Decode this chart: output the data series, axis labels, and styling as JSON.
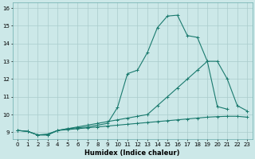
{
  "title": "",
  "xlabel": "Humidex (Indice chaleur)",
  "bg_color": "#cce8e8",
  "grid_color": "#aacccc",
  "line_color": "#1a7a6e",
  "xlim": [
    -0.5,
    23.5
  ],
  "ylim": [
    8.6,
    16.3
  ],
  "xticks": [
    0,
    1,
    2,
    3,
    4,
    5,
    6,
    7,
    8,
    9,
    10,
    11,
    12,
    13,
    14,
    15,
    16,
    17,
    18,
    19,
    20,
    21,
    22,
    23
  ],
  "yticks": [
    9,
    10,
    11,
    12,
    13,
    14,
    15,
    16
  ],
  "line1_x": [
    0,
    1,
    2,
    3,
    4,
    5,
    6,
    7,
    8,
    9,
    10,
    11,
    12,
    13,
    14,
    15,
    16,
    17,
    18,
    19,
    20,
    21,
    22,
    23
  ],
  "line1_y": [
    9.1,
    9.05,
    8.85,
    8.85,
    9.1,
    9.15,
    9.2,
    9.25,
    9.3,
    9.35,
    9.4,
    9.45,
    9.5,
    9.55,
    9.6,
    9.65,
    9.7,
    9.75,
    9.8,
    9.85,
    9.88,
    9.9,
    9.9,
    9.85
  ],
  "line2_x": [
    0,
    1,
    2,
    3,
    4,
    5,
    6,
    7,
    8,
    9,
    10,
    11,
    12,
    13,
    14,
    15,
    16,
    17,
    18,
    19,
    20,
    21,
    22,
    23
  ],
  "line2_y": [
    9.1,
    9.05,
    8.85,
    8.9,
    9.1,
    9.2,
    9.3,
    9.4,
    9.5,
    9.6,
    9.7,
    9.8,
    9.9,
    10.0,
    10.5,
    11.0,
    11.5,
    12.0,
    12.5,
    13.0,
    13.0,
    12.0,
    10.5,
    10.2
  ],
  "line3_x": [
    0,
    1,
    2,
    3,
    4,
    5,
    6,
    7,
    8,
    9,
    10,
    11,
    12,
    13,
    14,
    15,
    16,
    17,
    18,
    19,
    20,
    21,
    22,
    23
  ],
  "line3_y": [
    9.1,
    9.05,
    8.85,
    8.85,
    9.1,
    9.2,
    9.25,
    9.3,
    9.4,
    9.5,
    10.4,
    12.3,
    12.5,
    13.5,
    14.9,
    15.55,
    15.6,
    14.45,
    14.35,
    13.0,
    10.45,
    10.3,
    null,
    null
  ]
}
